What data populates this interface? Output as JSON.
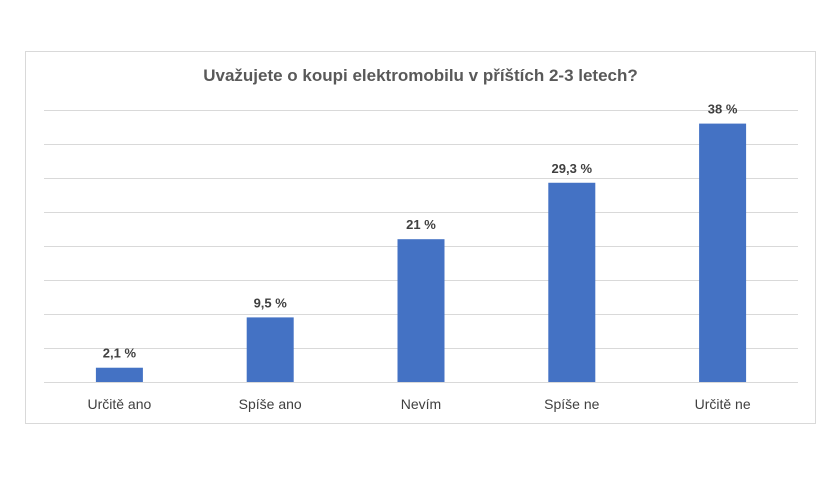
{
  "chart_data": {
    "type": "bar",
    "title": "Uvažujete o koupi elektromobilu v příštích 2-3 letech?",
    "categories": [
      "Určitě ano",
      "Spíše ano",
      "Nevím",
      "Spíše ne",
      "Určitě ne"
    ],
    "values": [
      2.1,
      9.5,
      21,
      29.3,
      38
    ],
    "data_labels": [
      "2,1 %",
      "9,5 %",
      "21 %",
      "29,3 %",
      "38 %"
    ],
    "xlabel": "",
    "ylabel": "",
    "ylim": [
      0,
      40
    ],
    "grid": true,
    "legend": "none",
    "bar_color": "#4472c4"
  }
}
